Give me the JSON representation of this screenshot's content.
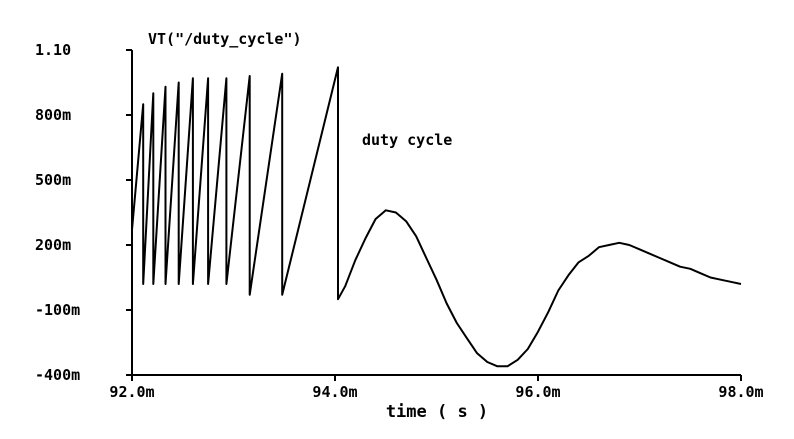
{
  "chart_data": {
    "type": "line",
    "title": "VT(\"/duty_cycle\")",
    "annotation": "duty cycle",
    "xlabel": "time ( s )",
    "ylabel": "",
    "xlim": [
      0.092,
      0.098
    ],
    "ylim": [
      -0.4,
      1.1
    ],
    "grid": false,
    "x_ticks": [
      {
        "value": 0.092,
        "label": "92.0m"
      },
      {
        "value": 0.094,
        "label": "94.0m"
      },
      {
        "value": 0.096,
        "label": "96.0m"
      },
      {
        "value": 0.098,
        "label": "98.0m"
      }
    ],
    "y_ticks": [
      {
        "value": 1.1,
        "label": "1.10"
      },
      {
        "value": 0.8,
        "label": "800m"
      },
      {
        "value": 0.5,
        "label": "500m"
      },
      {
        "value": 0.2,
        "label": "200m"
      },
      {
        "value": -0.1,
        "label": "-100m"
      },
      {
        "value": -0.4,
        "label": "-400m"
      }
    ],
    "series": [
      {
        "color": "#000000",
        "x": [
          0.092,
          0.09211,
          0.09211,
          0.09221,
          0.09221,
          0.09233,
          0.09233,
          0.09246,
          0.09246,
          0.0926,
          0.0926,
          0.09275,
          0.09275,
          0.09293,
          0.09293,
          0.09316,
          0.09316,
          0.09348,
          0.09348,
          0.09403,
          0.09403,
          0.0941,
          0.0942,
          0.0943,
          0.0944,
          0.0945,
          0.0946,
          0.0947,
          0.0948,
          0.0949,
          0.095,
          0.0951,
          0.0952,
          0.0953,
          0.0954,
          0.0955,
          0.0956,
          0.0957,
          0.0958,
          0.0959,
          0.096,
          0.0961,
          0.0962,
          0.0963,
          0.0964,
          0.0965,
          0.0966,
          0.0967,
          0.0968,
          0.0969,
          0.097,
          0.0971,
          0.0972,
          0.0973,
          0.0974,
          0.0975,
          0.0976,
          0.0977,
          0.0978,
          0.0979,
          0.098
        ],
        "y": [
          0.27,
          0.85,
          0.02,
          0.9,
          0.02,
          0.93,
          0.02,
          0.95,
          0.02,
          0.97,
          0.02,
          0.97,
          0.02,
          0.97,
          0.02,
          0.98,
          -0.03,
          0.99,
          -0.03,
          1.02,
          -0.05,
          0.01,
          0.13,
          0.23,
          0.32,
          0.36,
          0.35,
          0.31,
          0.24,
          0.14,
          0.04,
          -0.07,
          -0.16,
          -0.23,
          -0.3,
          -0.34,
          -0.36,
          -0.36,
          -0.33,
          -0.28,
          -0.2,
          -0.11,
          -0.01,
          0.06,
          0.12,
          0.15,
          0.19,
          0.2,
          0.21,
          0.2,
          0.18,
          0.16,
          0.14,
          0.12,
          0.1,
          0.09,
          0.07,
          0.05,
          0.04,
          0.03,
          0.02
        ]
      }
    ]
  }
}
